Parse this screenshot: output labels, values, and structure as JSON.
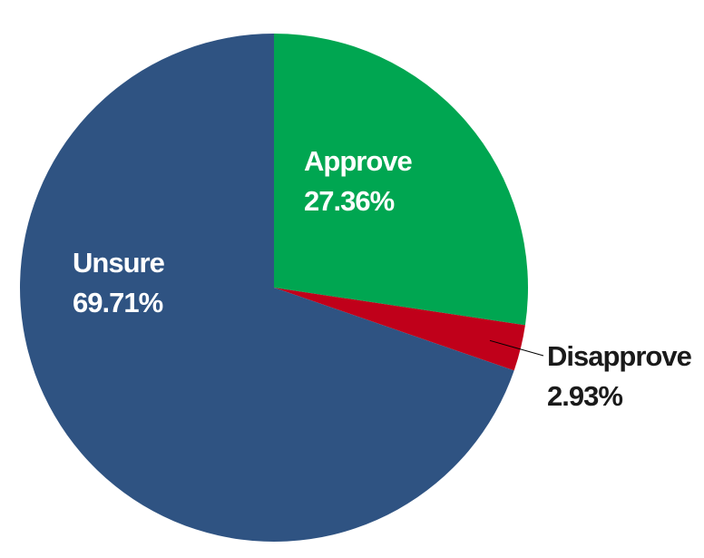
{
  "chart_data": {
    "type": "pie",
    "categories": [
      "Approve",
      "Disapprove",
      "Unsure"
    ],
    "values": [
      27.36,
      2.93,
      69.71
    ],
    "value_labels": [
      "27.36%",
      "2.93%",
      "69.71%"
    ],
    "colors": [
      "#00a651",
      "#c0001a",
      "#2f5382"
    ]
  }
}
